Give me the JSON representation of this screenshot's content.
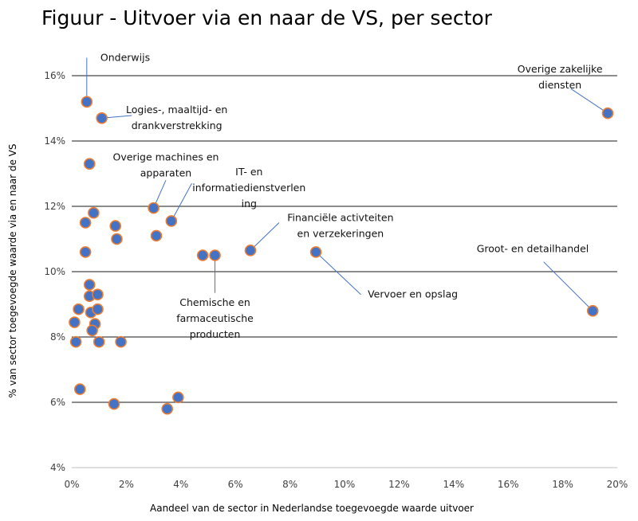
{
  "chart_data": {
    "type": "scatter",
    "title": "Figuur - Uitvoer via en naar de VS, per sector",
    "xlabel": "Aandeel van de sector in Nederlandse toegevoegde waarde uitvoer",
    "ylabel": "% van sector toegevoegde waarde via en naar de VS",
    "xlim": [
      0,
      20
    ],
    "ylim": [
      4,
      16
    ],
    "x_ticks": [
      0,
      2,
      4,
      6,
      8,
      10,
      12,
      14,
      16,
      18,
      20
    ],
    "y_ticks": [
      4,
      6,
      8,
      10,
      12,
      14,
      16
    ],
    "x_tick_labels": [
      "0%",
      "2%",
      "4%",
      "6%",
      "8%",
      "10%",
      "12%",
      "14%",
      "16%",
      "18%",
      "20%"
    ],
    "y_tick_labels": [
      "4%",
      "6%",
      "8%",
      "10%",
      "12%",
      "14%",
      "16%"
    ],
    "grid": "horizontal",
    "point_color": "#4472C4",
    "point_edge_color": "#ED7D31",
    "points": [
      {
        "x": 0.55,
        "y": 15.2
      },
      {
        "x": 1.1,
        "y": 14.7
      },
      {
        "x": 0.65,
        "y": 13.3
      },
      {
        "x": 3.0,
        "y": 11.95
      },
      {
        "x": 3.65,
        "y": 11.55
      },
      {
        "x": 0.8,
        "y": 11.8
      },
      {
        "x": 0.5,
        "y": 11.5
      },
      {
        "x": 1.6,
        "y": 11.4
      },
      {
        "x": 1.65,
        "y": 11.0
      },
      {
        "x": 3.1,
        "y": 11.1
      },
      {
        "x": 0.5,
        "y": 10.6
      },
      {
        "x": 4.8,
        "y": 10.5
      },
      {
        "x": 5.25,
        "y": 10.5
      },
      {
        "x": 6.55,
        "y": 10.65
      },
      {
        "x": 8.95,
        "y": 10.6
      },
      {
        "x": 19.65,
        "y": 14.85
      },
      {
        "x": 19.1,
        "y": 8.8
      },
      {
        "x": 0.65,
        "y": 9.6
      },
      {
        "x": 0.65,
        "y": 9.25
      },
      {
        "x": 0.95,
        "y": 9.3
      },
      {
        "x": 0.25,
        "y": 8.85
      },
      {
        "x": 0.7,
        "y": 8.75
      },
      {
        "x": 0.95,
        "y": 8.85
      },
      {
        "x": 0.1,
        "y": 8.45
      },
      {
        "x": 0.85,
        "y": 8.4
      },
      {
        "x": 0.75,
        "y": 8.2
      },
      {
        "x": 0.15,
        "y": 7.85
      },
      {
        "x": 1.0,
        "y": 7.85
      },
      {
        "x": 1.8,
        "y": 7.85
      },
      {
        "x": 0.3,
        "y": 6.4
      },
      {
        "x": 1.55,
        "y": 5.95
      },
      {
        "x": 3.5,
        "y": 5.8
      },
      {
        "x": 3.9,
        "y": 6.15
      }
    ],
    "annotations": [
      {
        "lines": [
          "Onderwijs"
        ],
        "x": 0.55,
        "y": 15.2,
        "anchor": "start",
        "tx": 1.05,
        "ty": 16.55,
        "elbow": [
          {
            "x": 0.55,
            "y": 16.55
          }
        ]
      },
      {
        "lines": [
          "Logies-, maaltijd- en",
          "drankverstrekking"
        ],
        "x": 1.1,
        "y": 14.7,
        "anchor": "middle",
        "tx": 3.85,
        "ty": 14.95,
        "elbow": [
          {
            "x": 2.2,
            "y": 14.78
          }
        ]
      },
      {
        "lines": [
          "Overige machines en",
          "apparaten"
        ],
        "x": 3.0,
        "y": 11.95,
        "anchor": "middle",
        "tx": 3.45,
        "ty": 13.5,
        "elbow": [
          {
            "x": 3.45,
            "y": 12.8
          }
        ]
      },
      {
        "lines": [
          "IT- en",
          "informatiedienstverlen",
          "ing"
        ],
        "x": 3.65,
        "y": 11.55,
        "anchor": "middle",
        "tx": 6.5,
        "ty": 13.05,
        "elbow": [
          {
            "x": 4.4,
            "y": 12.7
          }
        ]
      },
      {
        "lines": [
          "Financiële activteiten",
          "en verzekeringen"
        ],
        "x": 6.55,
        "y": 10.65,
        "anchor": "middle",
        "tx": 9.85,
        "ty": 11.65,
        "elbow": [
          {
            "x": 7.6,
            "y": 11.5
          }
        ]
      },
      {
        "lines": [
          "Overige zakelijke",
          "diensten"
        ],
        "x": 19.65,
        "y": 14.85,
        "anchor": "middle",
        "tx": 17.9,
        "ty": 16.2,
        "elbow": [
          {
            "x": 18.3,
            "y": 15.6
          }
        ]
      },
      {
        "lines": [
          "Groot- en detailhandel"
        ],
        "x": 19.1,
        "y": 8.8,
        "anchor": "middle",
        "tx": 16.9,
        "ty": 10.7,
        "elbow": [
          {
            "x": 17.3,
            "y": 10.3
          }
        ]
      },
      {
        "lines": [
          "Vervoer en opslag"
        ],
        "x": 8.95,
        "y": 10.6,
        "anchor": "start",
        "tx": 10.85,
        "ty": 9.3,
        "elbow": [
          {
            "x": 10.6,
            "y": 9.3
          }
        ]
      },
      {
        "lines": [
          "Chemische en",
          "farmaceutische",
          "producten"
        ],
        "x": 5.25,
        "y": 10.5,
        "anchor": "middle",
        "tx": 5.25,
        "ty": 9.05,
        "elbow": [
          {
            "x": 5.25,
            "y": 9.35
          }
        ]
      }
    ]
  }
}
